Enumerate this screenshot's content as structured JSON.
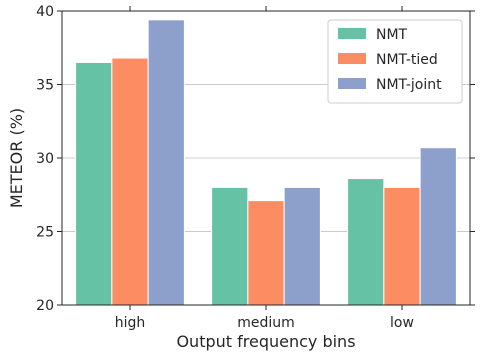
{
  "chart_data": {
    "type": "bar",
    "categories": [
      "high",
      "medium",
      "low"
    ],
    "series": [
      {
        "name": "NMT",
        "values": [
          36.5,
          28.0,
          28.6
        ],
        "color": "#66c2a5"
      },
      {
        "name": "NMT-tied",
        "values": [
          36.8,
          27.1,
          28.0
        ],
        "color": "#fc8d62"
      },
      {
        "name": "NMT-joint",
        "values": [
          39.4,
          28.0,
          30.7
        ],
        "color": "#8da0cb"
      }
    ],
    "xlabel": "Output frequency bins",
    "ylabel": "METEOR (%)",
    "ylim": [
      20,
      40
    ],
    "yticks": [
      20,
      25,
      30,
      35,
      40
    ],
    "grid": "horizontal",
    "legend_position": "top-right"
  }
}
